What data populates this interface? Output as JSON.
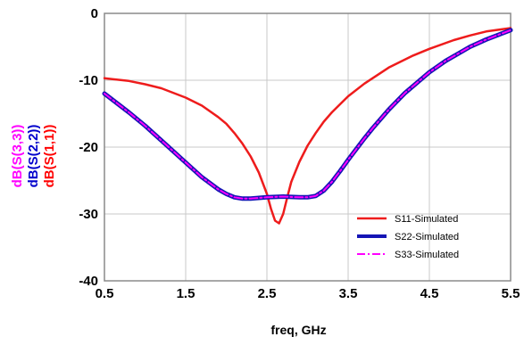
{
  "chart_data": {
    "type": "line",
    "title": "",
    "xlabel": "freq, GHz",
    "ylabels": [
      {
        "text": "dB(S(3,3))",
        "color": "#ff00ff"
      },
      {
        "text": "dB(S(2,2))",
        "color": "#0000cc"
      },
      {
        "text": "dB(S(1,1))",
        "color": "#ff0000"
      }
    ],
    "xlim": [
      0.5,
      5.5
    ],
    "ylim": [
      -40,
      0
    ],
    "x_ticks": [
      "0.5",
      "1.5",
      "2.5",
      "3.5",
      "4.5",
      "5.5"
    ],
    "y_ticks": [
      "0",
      "-10",
      "-20",
      "-30",
      "-40"
    ],
    "grid": true,
    "legend_position": "bottom-right",
    "series": [
      {
        "name": "S11-Simulated",
        "color": "#ee1c1c",
        "style": "solid",
        "x": [
          0.5,
          0.8,
          1.0,
          1.2,
          1.5,
          1.7,
          1.9,
          2.0,
          2.1,
          2.2,
          2.3,
          2.4,
          2.5,
          2.55,
          2.6,
          2.65,
          2.7,
          2.75,
          2.8,
          2.9,
          3.0,
          3.1,
          3.2,
          3.3,
          3.5,
          3.7,
          4.0,
          4.3,
          4.5,
          4.8,
          5.0,
          5.2,
          5.5
        ],
        "y": [
          -9.7,
          -10.1,
          -10.6,
          -11.2,
          -12.6,
          -13.8,
          -15.5,
          -16.5,
          -17.9,
          -19.5,
          -21.4,
          -23.8,
          -27.0,
          -29.2,
          -31.0,
          -31.4,
          -30.0,
          -27.5,
          -25.2,
          -22.2,
          -19.8,
          -17.9,
          -16.2,
          -14.8,
          -12.4,
          -10.5,
          -8.1,
          -6.3,
          -5.3,
          -4.0,
          -3.3,
          -2.7,
          -2.2
        ]
      },
      {
        "name": "S22-Simulated",
        "color": "#1515b5",
        "style": "solid",
        "x": [
          0.5,
          0.8,
          1.0,
          1.2,
          1.5,
          1.7,
          1.9,
          2.0,
          2.1,
          2.2,
          2.3,
          2.5,
          2.7,
          2.9,
          3.0,
          3.1,
          3.2,
          3.3,
          3.4,
          3.5,
          3.6,
          3.7,
          3.8,
          4.0,
          4.2,
          4.5,
          4.7,
          5.0,
          5.2,
          5.5
        ],
        "y": [
          -12.0,
          -14.8,
          -16.8,
          -19.0,
          -22.3,
          -24.5,
          -26.3,
          -27.0,
          -27.5,
          -27.7,
          -27.7,
          -27.5,
          -27.4,
          -27.5,
          -27.5,
          -27.3,
          -26.5,
          -25.2,
          -23.6,
          -21.9,
          -20.3,
          -18.7,
          -17.2,
          -14.4,
          -11.9,
          -8.8,
          -7.1,
          -5.0,
          -3.9,
          -2.5
        ]
      },
      {
        "name": "S33-Simulated",
        "color": "#ff00ff",
        "style": "dashdot",
        "x": [
          0.5,
          0.8,
          1.0,
          1.2,
          1.5,
          1.7,
          1.9,
          2.0,
          2.1,
          2.2,
          2.3,
          2.5,
          2.7,
          2.9,
          3.0,
          3.1,
          3.2,
          3.3,
          3.4,
          3.5,
          3.6,
          3.7,
          3.8,
          4.0,
          4.2,
          4.5,
          4.7,
          5.0,
          5.2,
          5.5
        ],
        "y": [
          -12.0,
          -14.8,
          -16.8,
          -19.0,
          -22.3,
          -24.5,
          -26.3,
          -27.0,
          -27.5,
          -27.7,
          -27.7,
          -27.5,
          -27.4,
          -27.5,
          -27.5,
          -27.3,
          -26.5,
          -25.2,
          -23.6,
          -21.9,
          -20.3,
          -18.7,
          -17.2,
          -14.4,
          -11.9,
          -8.8,
          -7.1,
          -5.0,
          -3.9,
          -2.5
        ]
      }
    ]
  }
}
